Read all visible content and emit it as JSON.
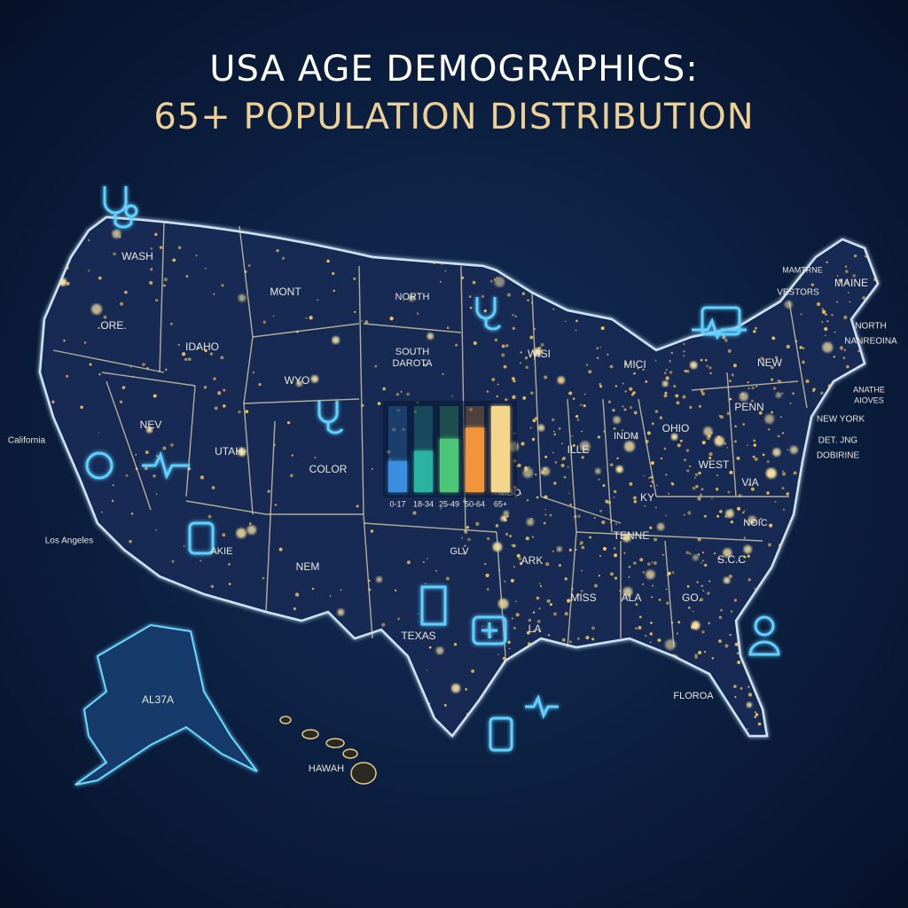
{
  "header": {
    "title": "USA AGE DEMOGRAPHICS:",
    "subtitle": "65+ POPULATION DISTRIBUTION"
  },
  "map": {
    "labels": [
      "WASH",
      "ORE.",
      "MONT",
      "IDAHO",
      "NORTH",
      "SOUTH",
      "DAROTA",
      "WYO",
      "NEV",
      "UTAH",
      "COLOR",
      "California",
      "Los Angeles",
      "AKIE",
      "NEM",
      "TEXAS",
      "GLV",
      "ARK",
      "LA",
      "MISS",
      "ALA",
      "GO.",
      "TENNE",
      "KY",
      "NOIC",
      "S.C.C",
      "VIA",
      "WEST",
      "OHIO",
      "INDM",
      "ILLE",
      "WISI",
      "MICI",
      "PENN",
      "NEW",
      "NEW YORK",
      "DET. JNG",
      "DOBIRINE",
      "MAINE",
      "MAMTRNE",
      "VESTORS",
      "NORTH",
      "NANREOINA",
      "ANATHE",
      "AIOVES",
      "MBO",
      "FLOROA",
      "HAWAH",
      "AL37A"
    ]
  },
  "chart_data": {
    "type": "bar",
    "categories": [
      "0-17",
      "18-34",
      "25-49",
      "50-64",
      "65+"
    ],
    "values": [
      36,
      48,
      62,
      75,
      100
    ],
    "colors": [
      "#3a8fe0",
      "#2bb3a0",
      "#4cc777",
      "#f0953a",
      "#f3d68a"
    ],
    "ylim": [
      0,
      100
    ]
  }
}
